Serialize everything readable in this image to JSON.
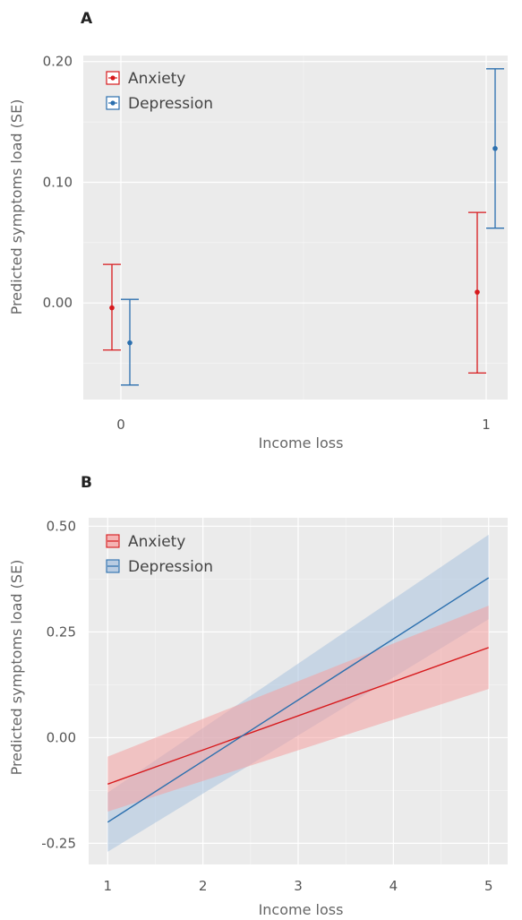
{
  "chart_data": [
    {
      "panel": "A",
      "type": "scatter",
      "xlabel": "Income loss",
      "ylabel": "Predicted symptoms load (SE)",
      "x_ticks": [
        "0",
        "1"
      ],
      "y_ticks": [
        "0.00",
        "0.10",
        "0.20"
      ],
      "ylim": [
        -0.08,
        0.205
      ],
      "grid": true,
      "legend_position": "top-left",
      "series": [
        {
          "name": "Anxiety",
          "color": "#d7191c",
          "points": [
            {
              "x": 0,
              "y": -0.004,
              "low": -0.039,
              "high": 0.032
            },
            {
              "x": 1,
              "y": 0.009,
              "low": -0.058,
              "high": 0.075
            }
          ]
        },
        {
          "name": "Depression",
          "color": "#2b6fae",
          "points": [
            {
              "x": 0,
              "y": -0.033,
              "low": -0.068,
              "high": 0.003
            },
            {
              "x": 1,
              "y": 0.128,
              "low": 0.062,
              "high": 0.194
            }
          ]
        }
      ]
    },
    {
      "panel": "B",
      "type": "line",
      "xlabel": "Income loss",
      "ylabel": "Predicted symptoms load (SE)",
      "x_ticks": [
        "1",
        "2",
        "3",
        "4",
        "5"
      ],
      "y_ticks": [
        "-0.25",
        "0.00",
        "0.25",
        "0.50"
      ],
      "xlim": [
        0.8,
        5.2
      ],
      "ylim": [
        -0.3,
        0.52
      ],
      "grid": true,
      "legend_position": "top-left",
      "series": [
        {
          "name": "Anxiety",
          "color": "#d7191c",
          "fill": "#f4a0a0",
          "x": [
            1,
            5
          ],
          "y": [
            -0.11,
            0.213
          ],
          "ci_low": [
            -0.175,
            0.115
          ],
          "ci_high": [
            -0.045,
            0.312
          ]
        },
        {
          "name": "Depression",
          "color": "#2b6fae",
          "fill": "#a9c2de",
          "x": [
            1,
            5
          ],
          "y": [
            -0.2,
            0.378
          ],
          "ci_low": [
            -0.27,
            0.28
          ],
          "ci_high": [
            -0.13,
            0.48
          ]
        }
      ]
    }
  ]
}
